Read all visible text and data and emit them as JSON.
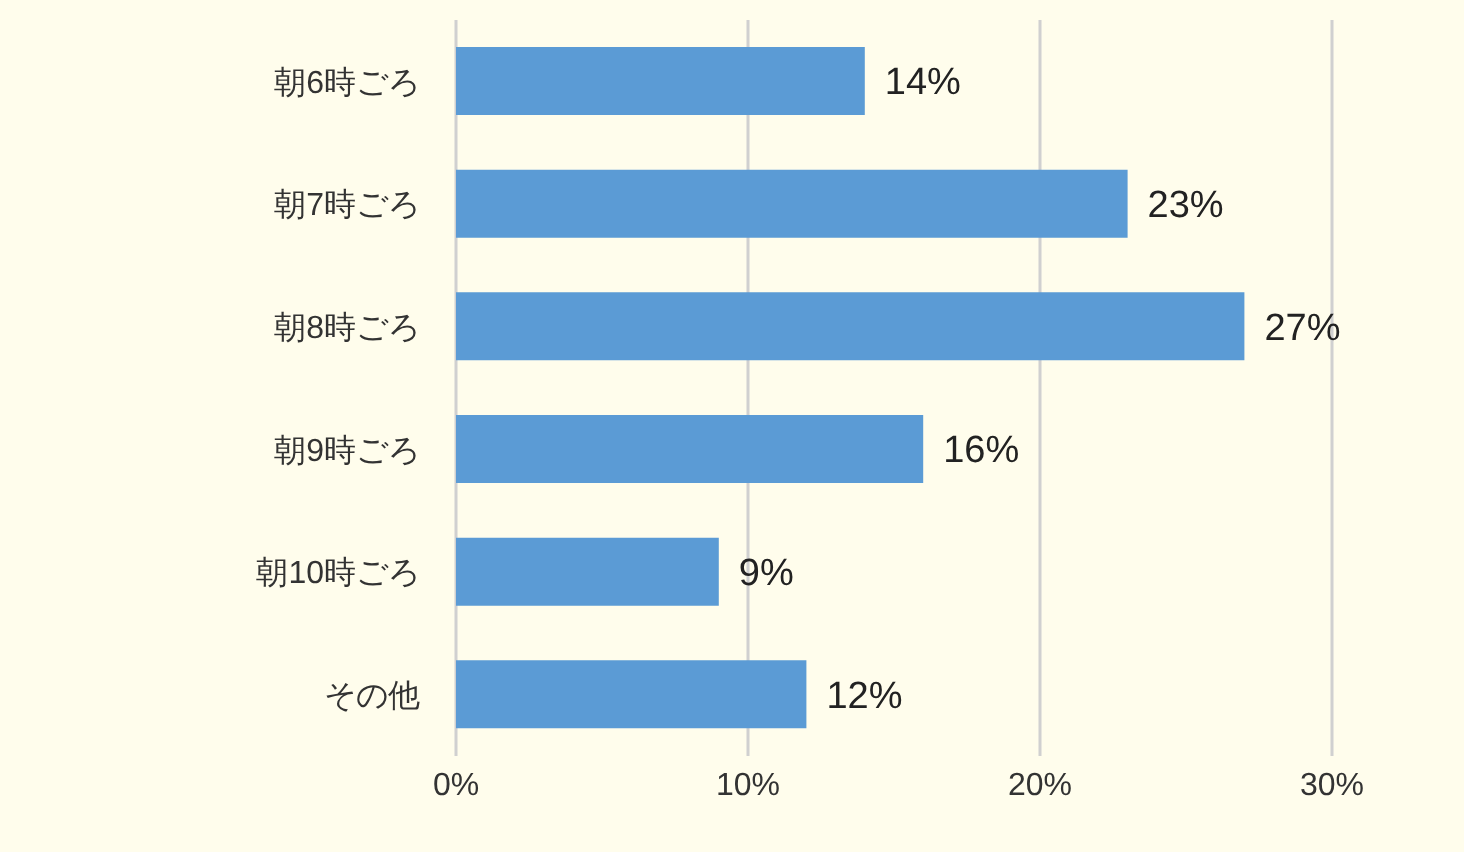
{
  "chart_data": {
    "type": "bar",
    "orientation": "horizontal",
    "categories": [
      "朝6時ごろ",
      "朝7時ごろ",
      "朝8時ごろ",
      "朝9時ごろ",
      "朝10時ごろ",
      "その他"
    ],
    "values": [
      14,
      23,
      27,
      16,
      9,
      12
    ],
    "value_labels": [
      "14%",
      "23%",
      "27%",
      "16%",
      "9%",
      "12%"
    ],
    "color": "#5b9bd5",
    "xlim": [
      0,
      30
    ],
    "xticks": [
      {
        "value": 0,
        "label": "0%"
      },
      {
        "value": 10,
        "label": "10%"
      },
      {
        "value": 20,
        "label": "20%"
      },
      {
        "value": 30,
        "label": "30%"
      }
    ],
    "grid": "x"
  }
}
